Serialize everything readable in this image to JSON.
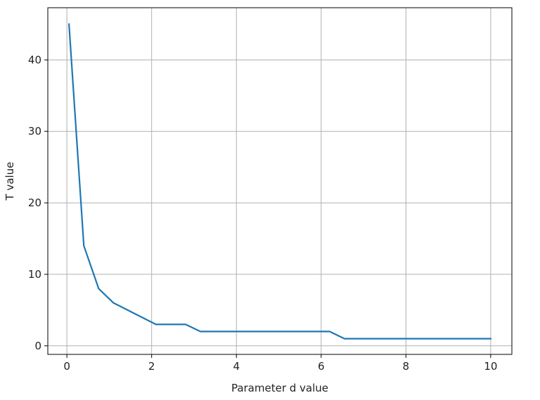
{
  "chart_data": {
    "type": "line",
    "title": "",
    "xlabel": "Parameter d value",
    "ylabel": "T value",
    "xlim": [
      -0.45,
      10.5
    ],
    "ylim": [
      -1.2,
      47.3
    ],
    "xticks": [
      0,
      2,
      4,
      6,
      8,
      10
    ],
    "yticks": [
      0,
      10,
      20,
      30,
      40
    ],
    "grid": true,
    "legend": "none",
    "series": [
      {
        "color": "#1f77b4",
        "x": [
          0.05,
          0.4,
          0.75,
          1.1,
          2.1,
          2.8,
          3.15,
          6.2,
          6.55,
          10.0
        ],
        "y": [
          45,
          14,
          8,
          6,
          3,
          3,
          2,
          2,
          1,
          1
        ]
      }
    ]
  }
}
